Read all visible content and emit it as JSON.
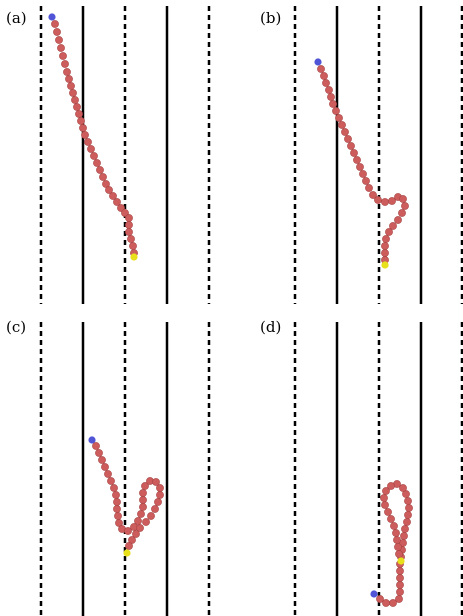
{
  "panels": [
    {
      "id": "a",
      "label": "(a)",
      "polymer": [
        [
          52,
          17
        ],
        [
          55,
          24
        ],
        [
          57,
          32
        ],
        [
          59,
          40
        ],
        [
          61,
          48
        ],
        [
          63,
          56
        ],
        [
          65,
          64
        ],
        [
          67,
          72
        ],
        [
          69,
          79
        ],
        [
          71,
          86
        ],
        [
          73,
          93
        ],
        [
          75,
          100
        ],
        [
          77,
          107
        ],
        [
          79,
          114
        ],
        [
          81,
          121
        ],
        [
          83,
          128
        ],
        [
          85,
          135
        ],
        [
          88,
          142
        ],
        [
          91,
          149
        ],
        [
          94,
          156
        ],
        [
          97,
          163
        ],
        [
          100,
          170
        ],
        [
          103,
          177
        ],
        [
          106,
          184
        ],
        [
          109,
          190
        ],
        [
          113,
          196
        ],
        [
          117,
          202
        ],
        [
          121,
          208
        ],
        [
          125,
          213
        ],
        [
          129,
          218
        ],
        [
          129,
          225
        ],
        [
          129,
          232
        ],
        [
          131,
          239
        ],
        [
          133,
          246
        ],
        [
          134,
          253
        ],
        [
          134,
          257
        ]
      ]
    },
    {
      "id": "b",
      "label": "(b)",
      "polymer": [
        [
          318,
          62
        ],
        [
          321,
          69
        ],
        [
          324,
          76
        ],
        [
          326,
          83
        ],
        [
          329,
          90
        ],
        [
          331,
          97
        ],
        [
          333,
          104
        ],
        [
          336,
          111
        ],
        [
          339,
          118
        ],
        [
          342,
          125
        ],
        [
          345,
          132
        ],
        [
          348,
          139
        ],
        [
          351,
          146
        ],
        [
          354,
          153
        ],
        [
          357,
          160
        ],
        [
          360,
          167
        ],
        [
          363,
          174
        ],
        [
          366,
          181
        ],
        [
          369,
          188
        ],
        [
          373,
          195
        ],
        [
          378,
          200
        ],
        [
          385,
          202
        ],
        [
          392,
          201
        ],
        [
          398,
          197
        ],
        [
          403,
          199
        ],
        [
          405,
          206
        ],
        [
          402,
          213
        ],
        [
          398,
          220
        ],
        [
          393,
          226
        ],
        [
          389,
          232
        ],
        [
          386,
          239
        ],
        [
          385,
          246
        ],
        [
          385,
          253
        ],
        [
          385,
          260
        ],
        [
          385,
          265
        ]
      ]
    },
    {
      "id": "c",
      "label": "(c)",
      "polymer": [
        [
          92,
          440
        ],
        [
          96,
          446
        ],
        [
          99,
          453
        ],
        [
          102,
          460
        ],
        [
          105,
          467
        ],
        [
          108,
          474
        ],
        [
          111,
          481
        ],
        [
          114,
          488
        ],
        [
          116,
          495
        ],
        [
          117,
          502
        ],
        [
          117,
          509
        ],
        [
          118,
          516
        ],
        [
          119,
          523
        ],
        [
          122,
          529
        ],
        [
          128,
          531
        ],
        [
          134,
          527
        ],
        [
          138,
          521
        ],
        [
          141,
          514
        ],
        [
          143,
          507
        ],
        [
          143,
          500
        ],
        [
          143,
          493
        ],
        [
          145,
          486
        ],
        [
          150,
          481
        ],
        [
          156,
          482
        ],
        [
          160,
          488
        ],
        [
          160,
          495
        ],
        [
          158,
          502
        ],
        [
          155,
          509
        ],
        [
          151,
          516
        ],
        [
          146,
          522
        ],
        [
          140,
          528
        ],
        [
          136,
          534
        ],
        [
          132,
          540
        ],
        [
          129,
          546
        ],
        [
          127,
          553
        ]
      ]
    },
    {
      "id": "d",
      "label": "(d)",
      "polymer": [
        [
          374,
          594
        ],
        [
          380,
          599
        ],
        [
          386,
          603
        ],
        [
          393,
          603
        ],
        [
          399,
          599
        ],
        [
          400,
          592
        ],
        [
          400,
          585
        ],
        [
          400,
          578
        ],
        [
          400,
          571
        ],
        [
          400,
          564
        ],
        [
          401,
          557
        ],
        [
          402,
          550
        ],
        [
          403,
          543
        ],
        [
          404,
          536
        ],
        [
          405,
          529
        ],
        [
          407,
          522
        ],
        [
          408,
          515
        ],
        [
          409,
          508
        ],
        [
          408,
          501
        ],
        [
          406,
          494
        ],
        [
          403,
          488
        ],
        [
          397,
          484
        ],
        [
          391,
          486
        ],
        [
          386,
          491
        ],
        [
          384,
          498
        ],
        [
          385,
          505
        ],
        [
          388,
          512
        ],
        [
          391,
          519
        ],
        [
          394,
          526
        ],
        [
          396,
          533
        ],
        [
          397,
          540
        ],
        [
          398,
          547
        ],
        [
          399,
          554
        ],
        [
          401,
          561
        ]
      ]
    }
  ],
  "colors": {
    "bead": "#cd5c5c",
    "bead_edge": "#a84545",
    "start_bead": "#4f55d6",
    "end_bead": "#e8e01a",
    "boundary": "#000000"
  }
}
